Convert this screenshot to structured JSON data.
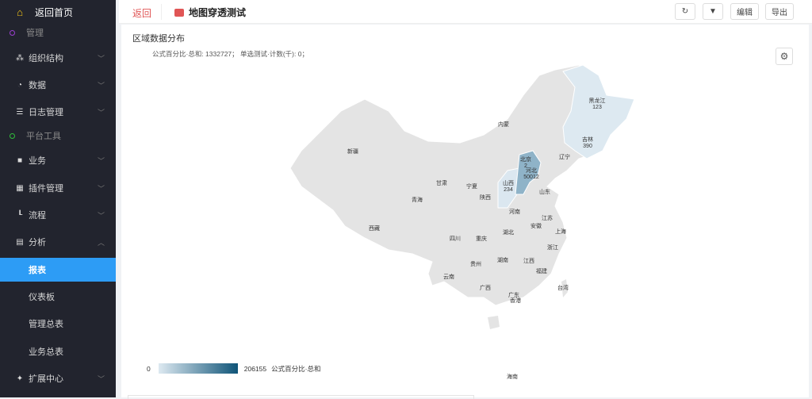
{
  "sidebar": {
    "home": "返回首页",
    "items": [
      {
        "label": "管理",
        "type": "group",
        "color": "#9b3fd1"
      },
      {
        "label": "组织结构",
        "icon": "sitemap-icon",
        "glyph": "⁂"
      },
      {
        "label": "数据",
        "icon": "pie-chart-icon",
        "glyph": "◔"
      },
      {
        "label": "日志管理",
        "icon": "list-icon",
        "glyph": "☰"
      },
      {
        "label": "平台工具",
        "type": "group",
        "color": "#2fbf3a"
      },
      {
        "label": "业务",
        "icon": "briefcase-icon",
        "glyph": "■"
      },
      {
        "label": "插件管理",
        "icon": "grid-icon",
        "glyph": "▦"
      },
      {
        "label": "流程",
        "icon": "flow-icon",
        "glyph": "┖"
      },
      {
        "label": "分析",
        "icon": "chart-icon",
        "glyph": "▤",
        "expanded": true
      },
      {
        "label": "报表",
        "type": "sub",
        "active": true
      },
      {
        "label": "仪表板",
        "type": "sub"
      },
      {
        "label": "管理总表",
        "type": "sub"
      },
      {
        "label": "业务总表",
        "type": "sub"
      },
      {
        "label": "扩展中心",
        "icon": "puzzle-icon",
        "glyph": "✦"
      }
    ]
  },
  "topbar": {
    "back": "返回",
    "title": "地图穿透测试",
    "edit": "编辑",
    "export": "导出"
  },
  "panel": {
    "title": "区域数据分布",
    "summary": "公式百分比·总和: 1332727；  单选测试·计数(千): 0；"
  },
  "legend": {
    "min": "0",
    "max": "206155",
    "label": "公式百分比·总和",
    "color_low": "#dde9f1",
    "color_high": "#0f5478"
  },
  "provinces": [
    {
      "name": "黑龙江",
      "value": "123"
    },
    {
      "name": "吉林",
      "value": "390"
    },
    {
      "name": "辽宁"
    },
    {
      "name": "内蒙"
    },
    {
      "name": "新疆"
    },
    {
      "name": "甘肃"
    },
    {
      "name": "宁夏"
    },
    {
      "name": "青海"
    },
    {
      "name": "陕西"
    },
    {
      "name": "山西",
      "value": "234"
    },
    {
      "name": "北京",
      "value": "2"
    },
    {
      "name": "河北",
      "value": "50012"
    },
    {
      "name": "山东"
    },
    {
      "name": "河南"
    },
    {
      "name": "江苏"
    },
    {
      "name": "安徽"
    },
    {
      "name": "上海"
    },
    {
      "name": "西藏"
    },
    {
      "name": "四川"
    },
    {
      "name": "重庆"
    },
    {
      "name": "湖北"
    },
    {
      "name": "浙江"
    },
    {
      "name": "贵州"
    },
    {
      "name": "湖南"
    },
    {
      "name": "江西"
    },
    {
      "name": "福建"
    },
    {
      "name": "云南"
    },
    {
      "name": "广西"
    },
    {
      "name": "广东"
    },
    {
      "name": "香港"
    },
    {
      "name": "台湾"
    },
    {
      "name": "海南"
    }
  ]
}
